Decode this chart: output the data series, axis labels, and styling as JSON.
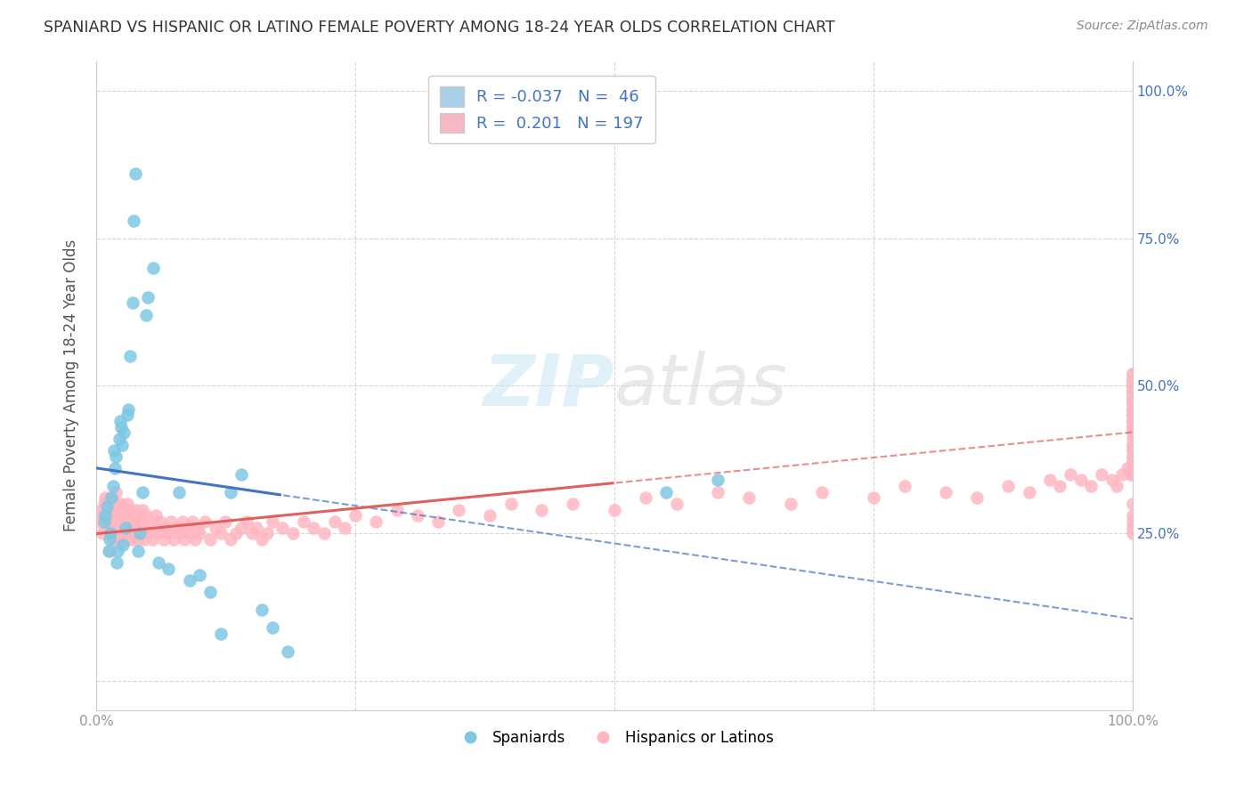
{
  "title": "SPANIARD VS HISPANIC OR LATINO FEMALE POVERTY AMONG 18-24 YEAR OLDS CORRELATION CHART",
  "source": "Source: ZipAtlas.com",
  "ylabel": "Female Poverty Among 18-24 Year Olds",
  "spaniard_color": "#7ec8e3",
  "hispanic_color": "#ffb6c1",
  "spaniard_line_color": "#4472c4",
  "hispanic_line_color": "#e06060",
  "spaniard_R": -0.037,
  "spaniard_N": 46,
  "hispanic_R": 0.201,
  "hispanic_N": 197,
  "legend_label_1": "Spaniards",
  "legend_label_2": "Hispanics or Latinos",
  "watermark_zip": "ZIP",
  "watermark_atlas": "atlas",
  "background_color": "#ffffff",
  "grid_color": "#cccccc",
  "title_color": "#333333",
  "axis_label_color": "#555555",
  "right_tick_color": "#4472c4",
  "spaniard_scatter_x": [
    0.008,
    0.009,
    0.01,
    0.012,
    0.013,
    0.014,
    0.015,
    0.016,
    0.017,
    0.018,
    0.019,
    0.02,
    0.021,
    0.022,
    0.023,
    0.024,
    0.025,
    0.026,
    0.027,
    0.028,
    0.03,
    0.031,
    0.033,
    0.035,
    0.036,
    0.038,
    0.04,
    0.042,
    0.045,
    0.048,
    0.05,
    0.055,
    0.06,
    0.07,
    0.08,
    0.09,
    0.1,
    0.11,
    0.12,
    0.13,
    0.14,
    0.16,
    0.17,
    0.185,
    0.55,
    0.6
  ],
  "spaniard_scatter_y": [
    0.27,
    0.28,
    0.295,
    0.22,
    0.24,
    0.25,
    0.31,
    0.33,
    0.39,
    0.36,
    0.38,
    0.2,
    0.22,
    0.41,
    0.44,
    0.43,
    0.4,
    0.23,
    0.42,
    0.26,
    0.45,
    0.46,
    0.55,
    0.64,
    0.78,
    0.86,
    0.22,
    0.25,
    0.32,
    0.62,
    0.65,
    0.7,
    0.2,
    0.19,
    0.32,
    0.17,
    0.18,
    0.15,
    0.08,
    0.32,
    0.35,
    0.12,
    0.09,
    0.05,
    0.32,
    0.34
  ],
  "hispanic_scatter_x": [
    0.003,
    0.005,
    0.006,
    0.007,
    0.008,
    0.009,
    0.01,
    0.01,
    0.011,
    0.012,
    0.013,
    0.014,
    0.015,
    0.015,
    0.016,
    0.017,
    0.018,
    0.018,
    0.019,
    0.02,
    0.02,
    0.021,
    0.022,
    0.023,
    0.024,
    0.025,
    0.025,
    0.026,
    0.027,
    0.028,
    0.029,
    0.03,
    0.03,
    0.031,
    0.032,
    0.033,
    0.034,
    0.035,
    0.036,
    0.037,
    0.038,
    0.039,
    0.04,
    0.041,
    0.042,
    0.043,
    0.044,
    0.045,
    0.046,
    0.047,
    0.048,
    0.05,
    0.052,
    0.054,
    0.056,
    0.058,
    0.06,
    0.062,
    0.065,
    0.067,
    0.07,
    0.072,
    0.075,
    0.078,
    0.08,
    0.083,
    0.085,
    0.088,
    0.09,
    0.093,
    0.095,
    0.098,
    0.1,
    0.105,
    0.11,
    0.115,
    0.12,
    0.125,
    0.13,
    0.135,
    0.14,
    0.145,
    0.15,
    0.155,
    0.16,
    0.165,
    0.17,
    0.18,
    0.19,
    0.2,
    0.21,
    0.22,
    0.23,
    0.24,
    0.25,
    0.27,
    0.29,
    0.31,
    0.33,
    0.35,
    0.38,
    0.4,
    0.43,
    0.46,
    0.5,
    0.53,
    0.56,
    0.6,
    0.63,
    0.67,
    0.7,
    0.75,
    0.78,
    0.82,
    0.85,
    0.88,
    0.9,
    0.92,
    0.93,
    0.94,
    0.95,
    0.96,
    0.97,
    0.98,
    0.985,
    0.99,
    0.995,
    0.998,
    1.0,
    1.0,
    1.0,
    1.0,
    1.0,
    1.0,
    1.0,
    1.0,
    1.0,
    1.0,
    1.0,
    1.0,
    1.0,
    1.0,
    1.0,
    1.0,
    1.0,
    1.0,
    1.0,
    1.0,
    1.0,
    1.0,
    1.0,
    1.0,
    1.0,
    1.0,
    1.0,
    1.0,
    1.0,
    1.0,
    1.0,
    1.0,
    1.0,
    1.0,
    1.0,
    1.0,
    1.0,
    1.0,
    1.0,
    1.0,
    1.0,
    1.0,
    1.0,
    1.0,
    1.0,
    1.0,
    1.0,
    1.0,
    1.0,
    1.0,
    1.0,
    1.0,
    1.0,
    1.0,
    1.0,
    1.0,
    1.0,
    1.0,
    1.0,
    1.0,
    1.0,
    1.0,
    1.0,
    1.0,
    1.0,
    1.0,
    1.0,
    1.0,
    1.0
  ],
  "hispanic_scatter_y": [
    0.27,
    0.29,
    0.25,
    0.28,
    0.3,
    0.31,
    0.26,
    0.28,
    0.27,
    0.29,
    0.22,
    0.31,
    0.25,
    0.27,
    0.24,
    0.3,
    0.26,
    0.28,
    0.32,
    0.25,
    0.27,
    0.29,
    0.24,
    0.26,
    0.3,
    0.28,
    0.25,
    0.27,
    0.29,
    0.24,
    0.26,
    0.28,
    0.3,
    0.25,
    0.27,
    0.29,
    0.24,
    0.26,
    0.28,
    0.25,
    0.27,
    0.29,
    0.24,
    0.26,
    0.28,
    0.25,
    0.27,
    0.29,
    0.24,
    0.26,
    0.28,
    0.25,
    0.27,
    0.24,
    0.26,
    0.28,
    0.25,
    0.27,
    0.24,
    0.26,
    0.25,
    0.27,
    0.24,
    0.26,
    0.25,
    0.27,
    0.24,
    0.26,
    0.25,
    0.27,
    0.24,
    0.26,
    0.25,
    0.27,
    0.24,
    0.26,
    0.25,
    0.27,
    0.24,
    0.25,
    0.26,
    0.27,
    0.25,
    0.26,
    0.24,
    0.25,
    0.27,
    0.26,
    0.25,
    0.27,
    0.26,
    0.25,
    0.27,
    0.26,
    0.28,
    0.27,
    0.29,
    0.28,
    0.27,
    0.29,
    0.28,
    0.3,
    0.29,
    0.3,
    0.29,
    0.31,
    0.3,
    0.32,
    0.31,
    0.3,
    0.32,
    0.31,
    0.33,
    0.32,
    0.31,
    0.33,
    0.32,
    0.34,
    0.33,
    0.35,
    0.34,
    0.33,
    0.35,
    0.34,
    0.33,
    0.35,
    0.36,
    0.35,
    0.37,
    0.36,
    0.35,
    0.37,
    0.38,
    0.37,
    0.39,
    0.38,
    0.4,
    0.39,
    0.38,
    0.4,
    0.41,
    0.42,
    0.43,
    0.44,
    0.45,
    0.43,
    0.46,
    0.45,
    0.44,
    0.47,
    0.46,
    0.45,
    0.48,
    0.47,
    0.46,
    0.45,
    0.44,
    0.43,
    0.42,
    0.43,
    0.44,
    0.45,
    0.46,
    0.47,
    0.48,
    0.46,
    0.47,
    0.48,
    0.49,
    0.5,
    0.48,
    0.51,
    0.5,
    0.49,
    0.51,
    0.52,
    0.5,
    0.49,
    0.5,
    0.51,
    0.52,
    0.5,
    0.51,
    0.52,
    0.5,
    0.51,
    0.5,
    0.49,
    0.5,
    0.51,
    0.5,
    0.49,
    0.27,
    0.28,
    0.3,
    0.25,
    0.26
  ]
}
